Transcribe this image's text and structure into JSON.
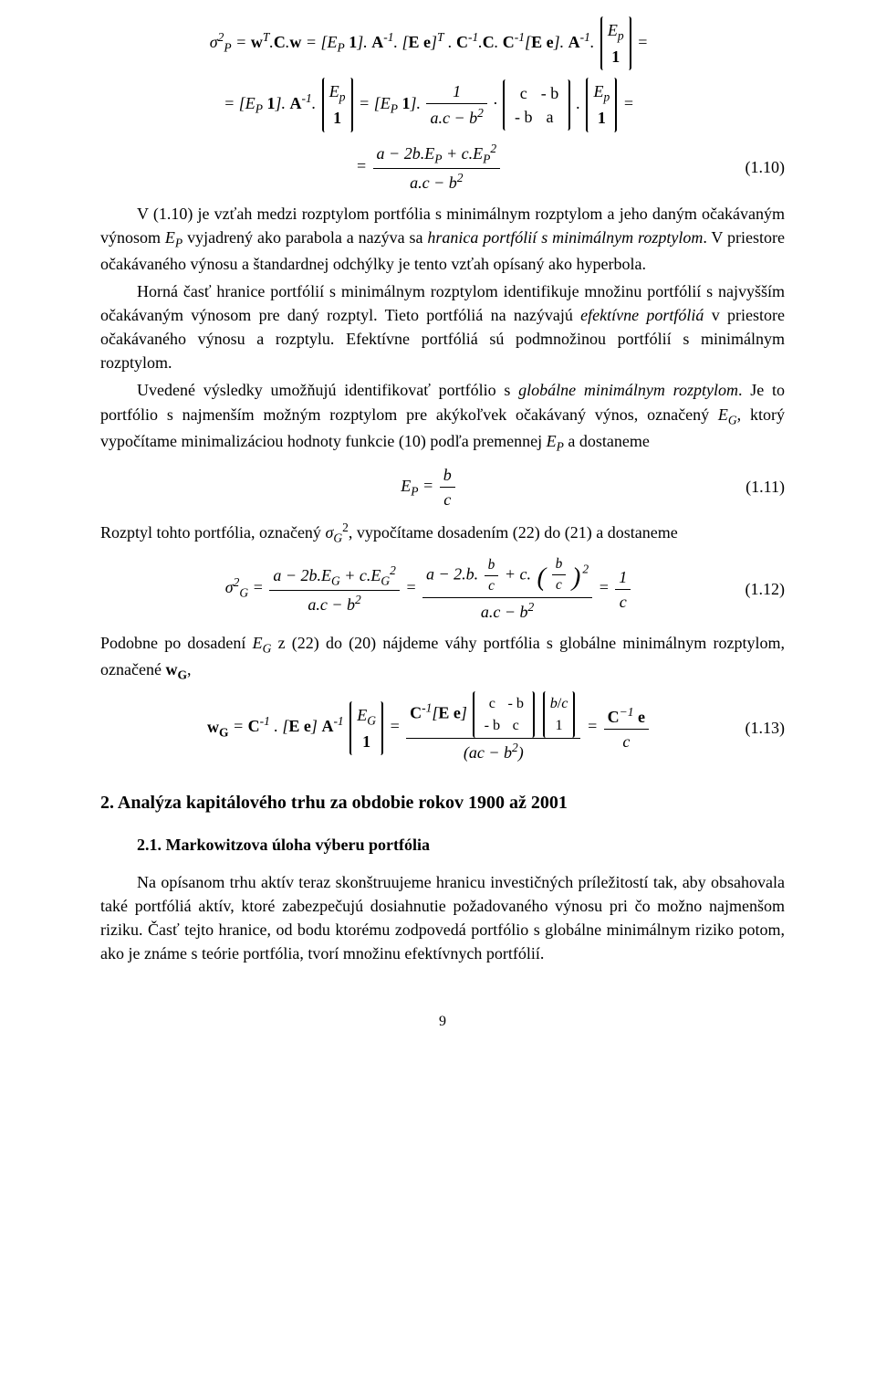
{
  "eq_top_a": "σ²_P = wᵀ.C.w = [E_P 1]. A⁻¹. [E e]ᵀ . C⁻¹.C. C⁻¹[E e]. A⁻¹. [E_p; 1] =",
  "eq_top_b": "= [E_P 1]. A⁻¹. [E_p; 1] = [E_P 1]. 1/(a.c−b²) · [c −b; −b a] · [E_p; 1] =",
  "eq_top_c": "= (a − 2b.E_P + c.E_P²) / (a.c − b²)",
  "eq110_num": "(1.10)",
  "para1": "V (1.10) je vzťah medzi rozptylom portfólia s minimálnym rozptylom a jeho daným očakávaným výnosom E_P vyjadrený ako parabola a nazýva sa hranica portfólií s minimálnym rozptylom. V priestore očakávaného výnosu a štandardnej odchýlky je tento vzťah opísaný ako hyperbola.",
  "para2": "Horná časť hranice portfólií s minimálnym rozptylom identifikuje množinu portfólií s najvyšším očakávaným výnosom pre daný rozptyl. Tieto portfóliá na nazývajú efektívne portfóliá v priestore očakávaného výnosu a rozptylu. Efektívne portfóliá sú podmnožinou portfólií s minimálnym rozptylom.",
  "para3": "Uvedené výsledky umožňujú identifikovať portfólio s globálne minimálnym rozptylom. Je to portfólio s najmenším možným rozptylom pre akýkoľvek očakávaný výnos, označený E_G, ktorý vypočítame minimalizáciou hodnoty funkcie (10) podľa premennej E_P a dostaneme",
  "eq111": "E_P = b / c",
  "eq111_num": "(1.11)",
  "para4": "Rozptyl tohto portfólia, označený σ_G², vypočítame dosadením (22) do (21) a dostaneme",
  "eq112": "σ²_G = (a − 2b.E_G + c.E_G²)/(a.c − b²) = (a − 2.b.(b/c) + c.(b/c)²)/(a.c − b²) = 1/c",
  "eq112_num": "(1.12)",
  "para5": "Podobne po dosadení E_G z (22) do (20) nájdeme váhy portfólia s globálne minimálnym rozptylom, označené w_G,",
  "eq113": "w_G = C⁻¹ . [E e] A⁻¹ [E_G; 1] = ( C⁻¹[E e] [c −b; −b c][b/c; 1] ) / (ac − b²) = C⁻¹ e / c",
  "eq113_num": "(1.13)",
  "h2": "2. Analýza kapitálového trhu za obdobie rokov 1900 až 2001",
  "h3": "2.1. Markowitzova úloha výberu portfólia",
  "para6": "Na opísanom trhu aktív teraz skonštruujeme hranicu investičných príležitostí tak, aby obsahovala také portfóliá aktív, ktoré zabezpečujú dosiahnutie požadovaného výnosu pri čo možno najmenšom riziku. Časť tejto hranice, od bodu ktorému zodpovedá portfólio s globálne minimálnym riziko potom, ako je známe s teórie portfólia, tvorí množinu efektívnych portfólií.",
  "page_number": "9"
}
